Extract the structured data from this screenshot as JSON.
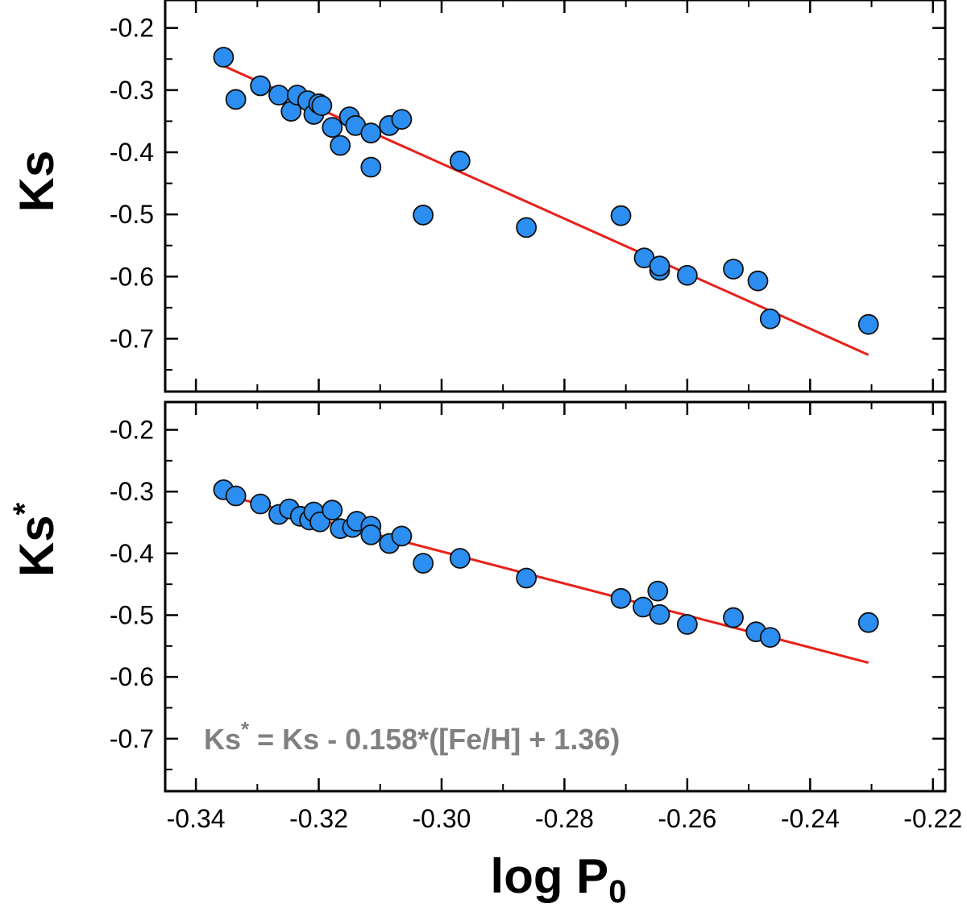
{
  "colors": {
    "point_fill": "#2b8ef0",
    "point_stroke": "#111111",
    "fit_line": "#e8211b",
    "annotation": "#808080",
    "axes": "#000000"
  },
  "x_axis": {
    "label_main": "log P",
    "label_sub": "0",
    "range": [
      -0.345,
      -0.218
    ],
    "ticks": [
      -0.34,
      -0.32,
      -0.3,
      -0.28,
      -0.26,
      -0.24,
      -0.22
    ],
    "tick_labels": [
      "-0.34",
      "-0.32",
      "-0.30",
      "-0.28",
      "-0.26",
      "-0.24",
      "-0.22"
    ]
  },
  "chart_data": [
    {
      "type": "scatter",
      "ylabel": "Ks",
      "ylabel_sup": "",
      "xlim": [
        -0.345,
        -0.218
      ],
      "ylim": [
        -0.785,
        -0.155
      ],
      "yticks": [
        -0.2,
        -0.3,
        -0.4,
        -0.5,
        -0.6,
        -0.7
      ],
      "ytick_labels": [
        "-0.2",
        "-0.3",
        "-0.4",
        "-0.5",
        "-0.6",
        "-0.7"
      ],
      "series": [
        {
          "points": [
            {
              "x": -0.3355,
              "y": -0.247
            },
            {
              "x": -0.3335,
              "y": -0.315
            },
            {
              "x": -0.3295,
              "y": -0.293
            },
            {
              "x": -0.3265,
              "y": -0.308
            },
            {
              "x": -0.3245,
              "y": -0.334
            },
            {
              "x": -0.3235,
              "y": -0.308
            },
            {
              "x": -0.3218,
              "y": -0.317
            },
            {
              "x": -0.3208,
              "y": -0.339
            },
            {
              "x": -0.32,
              "y": -0.322
            },
            {
              "x": -0.3195,
              "y": -0.325
            },
            {
              "x": -0.3178,
              "y": -0.36
            },
            {
              "x": -0.3165,
              "y": -0.389
            },
            {
              "x": -0.315,
              "y": -0.343
            },
            {
              "x": -0.314,
              "y": -0.357
            },
            {
              "x": -0.3115,
              "y": -0.369
            },
            {
              "x": -0.3115,
              "y": -0.424
            },
            {
              "x": -0.3085,
              "y": -0.357
            },
            {
              "x": -0.3065,
              "y": -0.347
            },
            {
              "x": -0.303,
              "y": -0.501
            },
            {
              "x": -0.297,
              "y": -0.414
            },
            {
              "x": -0.2862,
              "y": -0.521
            },
            {
              "x": -0.2708,
              "y": -0.502
            },
            {
              "x": -0.267,
              "y": -0.57
            },
            {
              "x": -0.2645,
              "y": -0.59
            },
            {
              "x": -0.2645,
              "y": -0.583
            },
            {
              "x": -0.26,
              "y": -0.598
            },
            {
              "x": -0.2525,
              "y": -0.588
            },
            {
              "x": -0.2485,
              "y": -0.607
            },
            {
              "x": -0.2465,
              "y": -0.668
            },
            {
              "x": -0.2305,
              "y": -0.677
            }
          ]
        }
      ],
      "fit": {
        "x": [
          -0.3355,
          -0.2305
        ],
        "y": [
          -0.261,
          -0.726
        ]
      }
    },
    {
      "type": "scatter",
      "ylabel": "Ks",
      "ylabel_sup": "*",
      "xlim": [
        -0.345,
        -0.218
      ],
      "ylim": [
        -0.785,
        -0.155
      ],
      "yticks": [
        -0.2,
        -0.3,
        -0.4,
        -0.5,
        -0.6,
        -0.7
      ],
      "ytick_labels": [
        "-0.2",
        "-0.3",
        "-0.4",
        "-0.5",
        "-0.6",
        "-0.7"
      ],
      "series": [
        {
          "points": [
            {
              "x": -0.3355,
              "y": -0.297
            },
            {
              "x": -0.3335,
              "y": -0.307
            },
            {
              "x": -0.3295,
              "y": -0.32
            },
            {
              "x": -0.3265,
              "y": -0.337
            },
            {
              "x": -0.3248,
              "y": -0.328
            },
            {
              "x": -0.323,
              "y": -0.34
            },
            {
              "x": -0.3215,
              "y": -0.346
            },
            {
              "x": -0.3208,
              "y": -0.333
            },
            {
              "x": -0.3198,
              "y": -0.349
            },
            {
              "x": -0.3178,
              "y": -0.33
            },
            {
              "x": -0.3165,
              "y": -0.36
            },
            {
              "x": -0.3145,
              "y": -0.358
            },
            {
              "x": -0.3138,
              "y": -0.348
            },
            {
              "x": -0.3115,
              "y": -0.356
            },
            {
              "x": -0.3115,
              "y": -0.37
            },
            {
              "x": -0.3085,
              "y": -0.384
            },
            {
              "x": -0.3065,
              "y": -0.372
            },
            {
              "x": -0.303,
              "y": -0.416
            },
            {
              "x": -0.297,
              "y": -0.408
            },
            {
              "x": -0.2862,
              "y": -0.44
            },
            {
              "x": -0.2708,
              "y": -0.473
            },
            {
              "x": -0.2672,
              "y": -0.487
            },
            {
              "x": -0.2648,
              "y": -0.461
            },
            {
              "x": -0.2645,
              "y": -0.499
            },
            {
              "x": -0.26,
              "y": -0.515
            },
            {
              "x": -0.2525,
              "y": -0.504
            },
            {
              "x": -0.2488,
              "y": -0.527
            },
            {
              "x": -0.2465,
              "y": -0.536
            },
            {
              "x": -0.2305,
              "y": -0.512
            }
          ]
        }
      ],
      "fit": {
        "x": [
          -0.3355,
          -0.2305
        ],
        "y": [
          -0.305,
          -0.577
        ]
      },
      "annotation": {
        "main": "Ks",
        "sup": "*",
        "rest": " = Ks - 0.158*([Fe/H] + 1.36)"
      }
    }
  ]
}
